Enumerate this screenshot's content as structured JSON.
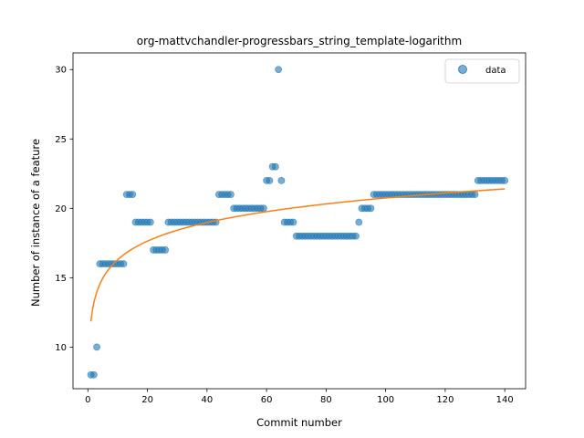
{
  "chart_data": {
    "type": "scatter",
    "title": "org-mattvchandler-progressbars_string_template-logarithm",
    "xlabel": "Commit number",
    "ylabel": "Number of instance of a feature",
    "xlim": [
      -5,
      147
    ],
    "ylim": [
      7,
      31.2
    ],
    "xticks": [
      0,
      20,
      40,
      60,
      80,
      100,
      120,
      140
    ],
    "yticks": [
      10,
      15,
      20,
      25,
      30
    ],
    "grid": false,
    "legend": {
      "placement": "top-right",
      "entries": [
        "data"
      ]
    },
    "colors": {
      "data": "#1f77b4",
      "fit": "#ff7f0e"
    },
    "series": [
      {
        "name": "data",
        "kind": "scatter",
        "x": [
          1,
          2,
          3,
          4,
          5,
          6,
          7,
          8,
          9,
          10,
          11,
          12,
          13,
          14,
          15,
          16,
          17,
          18,
          19,
          20,
          21,
          22,
          23,
          24,
          25,
          26,
          27,
          28,
          29,
          30,
          31,
          32,
          33,
          34,
          35,
          36,
          37,
          38,
          39,
          40,
          41,
          42,
          43,
          44,
          45,
          46,
          47,
          48,
          49,
          50,
          51,
          52,
          53,
          54,
          55,
          56,
          57,
          58,
          59,
          60,
          61,
          62,
          63,
          64,
          65,
          66,
          67,
          68,
          69,
          70,
          71,
          72,
          73,
          74,
          75,
          76,
          77,
          78,
          79,
          80,
          81,
          82,
          83,
          84,
          85,
          86,
          87,
          88,
          89,
          90,
          91,
          92,
          93,
          94,
          95,
          96,
          97,
          98,
          99,
          100,
          101,
          102,
          103,
          104,
          105,
          106,
          107,
          108,
          109,
          110,
          111,
          112,
          113,
          114,
          115,
          116,
          117,
          118,
          119,
          120,
          121,
          122,
          123,
          124,
          125,
          126,
          127,
          128,
          129,
          130,
          131,
          132,
          133,
          134,
          135,
          136,
          137,
          138,
          139,
          140
        ],
        "y": [
          8,
          8,
          10,
          16,
          16,
          16,
          16,
          16,
          16,
          16,
          16,
          16,
          21,
          21,
          21,
          19,
          19,
          19,
          19,
          19,
          19,
          17,
          17,
          17,
          17,
          17,
          19,
          19,
          19,
          19,
          19,
          19,
          19,
          19,
          19,
          19,
          19,
          19,
          19,
          19,
          19,
          19,
          19,
          21,
          21,
          21,
          21,
          21,
          20,
          20,
          20,
          20,
          20,
          20,
          20,
          20,
          20,
          20,
          20,
          22,
          22,
          23,
          23,
          30,
          22,
          19,
          19,
          19,
          19,
          18,
          18,
          18,
          18,
          18,
          18,
          18,
          18,
          18,
          18,
          18,
          18,
          18,
          18,
          18,
          18,
          18,
          18,
          18,
          18,
          18,
          19,
          20,
          20,
          20,
          20,
          21,
          21,
          21,
          21,
          21,
          21,
          21,
          21,
          21,
          21,
          21,
          21,
          21,
          21,
          21,
          21,
          21,
          21,
          21,
          21,
          21,
          21,
          21,
          21,
          21,
          21,
          21,
          21,
          21,
          21,
          21,
          21,
          21,
          21,
          21,
          22,
          22,
          22,
          22,
          22,
          22,
          22,
          22,
          22,
          22
        ]
      },
      {
        "name": "",
        "kind": "line",
        "fit": "logarithmic",
        "a": 11.85,
        "b": 1.932,
        "x_range": [
          1,
          140
        ]
      }
    ]
  }
}
